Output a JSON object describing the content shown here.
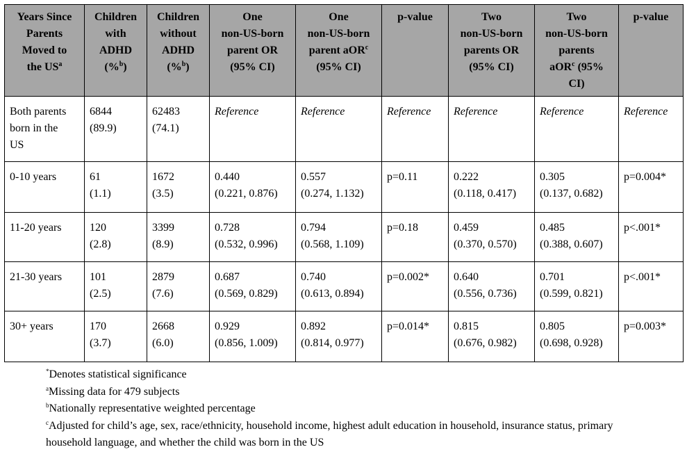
{
  "headers": [
    {
      "lines": [
        "Years Since",
        "Parents",
        "Moved to",
        "the US"
      ],
      "sup_last": "a"
    },
    {
      "lines": [
        "Children",
        "with",
        "ADHD",
        "(%"
      ],
      "sup_last": "b",
      "after_sup": ")"
    },
    {
      "lines": [
        "Children",
        "without",
        "ADHD",
        "(%"
      ],
      "sup_last": "b",
      "after_sup": ")"
    },
    {
      "lines": [
        "One",
        "non-US-born",
        "parent OR",
        "(95% CI)"
      ]
    },
    {
      "lines": [
        "One",
        "non-US-born",
        "parent aOR"
      ],
      "sup_last": "c",
      "extra_line": "(95% CI)"
    },
    {
      "lines": [
        "p-value"
      ]
    },
    {
      "lines": [
        "Two",
        "non-US-born",
        "parents OR",
        "(95% CI)"
      ]
    },
    {
      "lines": [
        "Two",
        "non-US-born",
        "parents",
        "aOR"
      ],
      "sup_last": "c",
      "after_sup": " (95%",
      "extra_line": "CI)"
    },
    {
      "lines": [
        "p-value"
      ]
    }
  ],
  "rows": [
    {
      "cells": [
        [
          "Both parents",
          "born in the",
          "US"
        ],
        [
          "6844",
          "(89.9)"
        ],
        [
          "62483",
          "(74.1)"
        ],
        [
          "Reference"
        ],
        [
          "Reference"
        ],
        [
          "Reference"
        ],
        [
          "Reference"
        ],
        [
          "Reference"
        ],
        [
          "Reference"
        ]
      ],
      "italic_from": 3
    },
    {
      "cells": [
        [
          "0-10 years"
        ],
        [
          "61",
          "(1.1)"
        ],
        [
          "1672",
          "(3.5)"
        ],
        [
          "0.440",
          "(0.221, 0.876)"
        ],
        [
          "0.557",
          "(0.274, 1.132)"
        ],
        [
          "p=0.11"
        ],
        [
          "0.222",
          "(0.118, 0.417)"
        ],
        [
          "0.305",
          "(0.137, 0.682)"
        ],
        [
          "p=0.004*"
        ]
      ]
    },
    {
      "cells": [
        [
          "11-20 years"
        ],
        [
          "120",
          "(2.8)"
        ],
        [
          "3399",
          "(8.9)"
        ],
        [
          "0.728",
          "(0.532, 0.996)"
        ],
        [
          "0.794",
          "(0.568, 1.109)"
        ],
        [
          "p=0.18"
        ],
        [
          "0.459",
          "(0.370, 0.570)"
        ],
        [
          "0.485",
          "(0.388, 0.607)"
        ],
        [
          "p<.001*"
        ]
      ]
    },
    {
      "cells": [
        [
          "21-30 years"
        ],
        [
          "101",
          "(2.5)"
        ],
        [
          "2879",
          "(7.6)"
        ],
        [
          "0.687",
          "(0.569, 0.829)"
        ],
        [
          "0.740",
          "(0.613, 0.894)"
        ],
        [
          "p=0.002*"
        ],
        [
          "0.640",
          "(0.556, 0.736)"
        ],
        [
          "0.701",
          "(0.599, 0.821)"
        ],
        [
          "p<.001*"
        ]
      ]
    },
    {
      "cells": [
        [
          "30+ years"
        ],
        [
          "170",
          "(3.7)"
        ],
        [
          "2668",
          "(6.0)"
        ],
        [
          "0.929",
          "(0.856, 1.009)"
        ],
        [
          "0.892",
          "(0.814, 0.977)"
        ],
        [
          "p=0.014*"
        ],
        [
          "0.815",
          "(0.676, 0.982)"
        ],
        [
          "0.805",
          "(0.698, 0.928)"
        ],
        [
          "p=0.003*"
        ]
      ]
    }
  ],
  "footnotes": [
    {
      "mark": "*",
      "text": "Denotes statistical significance"
    },
    {
      "mark": "a",
      "text": "Missing data for 479 subjects"
    },
    {
      "mark": "b",
      "text": "Nationally representative weighted percentage"
    },
    {
      "mark": "c",
      "text": "Adjusted for child’s age, sex, race/ethnicity, household income, highest adult education in household, insurance status, primary household language, and whether the child was born in the US"
    }
  ],
  "colors": {
    "header_bg": "#a6a6a6",
    "border": "#000000"
  }
}
